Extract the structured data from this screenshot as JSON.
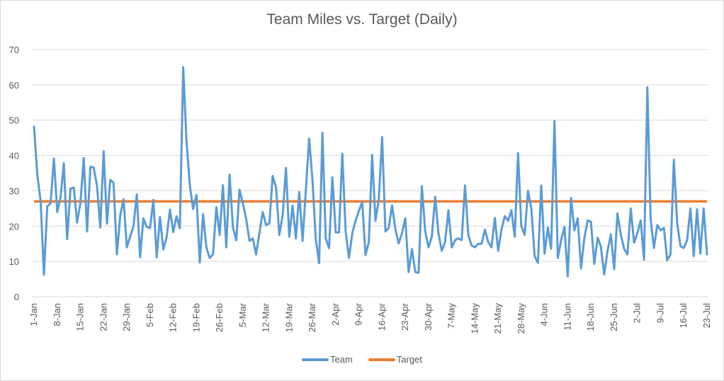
{
  "chart_data": {
    "type": "line",
    "title": "Team Miles vs. Target (Daily)",
    "xlabel": "",
    "ylabel": "",
    "ylim": [
      0,
      70
    ],
    "yticks": [
      "0",
      "10",
      "20",
      "30",
      "40",
      "50",
      "60",
      "70"
    ],
    "grid": true,
    "legend_position": "bottom",
    "x_start": "1-Jan",
    "x_end": "23-Jul",
    "xticks": [
      "1-Jan",
      "8-Jan",
      "15-Jan",
      "22-Jan",
      "29-Jan",
      "5-Feb",
      "12-Feb",
      "19-Feb",
      "26-Feb",
      "5-Mar",
      "12-Mar",
      "19-Mar",
      "26-Mar",
      "2-Apr",
      "9-Apr",
      "16-Apr",
      "23-Apr",
      "30-Apr",
      "7-May",
      "14-May",
      "21-May",
      "28-May",
      "4-Jun",
      "11-Jun",
      "18-Jun",
      "25-Jun",
      "2-Jul",
      "9-Jul",
      "16-Jul",
      "23-Jul"
    ],
    "series": [
      {
        "name": "Team",
        "color": "#5b9bd5",
        "values": [
          48.2,
          34.5,
          27.0,
          6.2,
          25.6,
          26.5,
          39.2,
          24.0,
          28.0,
          37.8,
          16.3,
          30.6,
          30.9,
          21.0,
          26.5,
          39.3,
          18.5,
          36.8,
          36.6,
          31.5,
          19.6,
          41.2,
          20.7,
          33.1,
          32.3,
          12.0,
          23.0,
          27.6,
          14.0,
          17.0,
          20.0,
          29.0,
          11.2,
          22.2,
          19.8,
          19.4,
          27.4,
          11.2,
          22.6,
          13.4,
          16.8,
          24.7,
          18.3,
          22.8,
          19.4,
          65.0,
          44.0,
          31.5,
          24.8,
          28.8,
          9.7,
          23.4,
          14.0,
          11.0,
          12.0,
          25.4,
          17.5,
          31.6,
          14.0,
          34.6,
          19.6,
          16.0,
          30.3,
          26.5,
          22.0,
          15.8,
          16.5,
          12.0,
          18.0,
          24.0,
          20.3,
          20.8,
          34.2,
          31.0,
          17.5,
          23.0,
          36.5,
          17.0,
          25.8,
          16.5,
          29.6,
          15.8,
          30.0,
          44.8,
          33.0,
          16.2,
          9.5,
          46.5,
          16.5,
          13.8,
          33.8,
          18.2,
          18.2,
          40.5,
          18.5,
          11.0,
          18.0,
          21.5,
          24.3,
          26.8,
          11.8,
          15.6,
          40.2,
          21.5,
          27.5,
          45.2,
          18.5,
          19.5,
          25.9,
          19.2,
          15.1,
          18.0,
          22.2,
          7.0,
          13.5,
          7.0,
          6.8,
          31.3,
          18.6,
          14.0,
          17.0,
          28.3,
          18.0,
          13.0,
          15.5,
          24.5,
          14.0,
          16.0,
          16.5,
          16.0,
          31.5,
          17.5,
          14.5,
          14.0,
          15.0,
          15.0,
          19.0,
          15.5,
          14.0,
          22.3,
          13.0,
          19.0,
          22.8,
          21.5,
          24.5,
          17.0,
          40.7,
          20.0,
          17.5,
          30.0,
          25.0,
          11.5,
          9.6,
          31.5,
          12.2,
          19.6,
          13.6,
          49.8,
          11.0,
          16.0,
          19.8,
          5.8,
          28.0,
          18.8,
          22.2,
          8.0,
          16.5,
          21.6,
          21.2,
          9.3,
          16.7,
          14.2,
          6.3,
          13.0,
          17.7,
          7.8,
          23.6,
          17.6,
          13.6,
          12.0,
          25.0,
          15.3,
          18.0,
          21.6,
          10.5,
          59.3,
          22.0,
          13.8,
          20.3,
          18.8,
          19.5,
          10.3,
          12.0,
          38.8,
          20.8,
          14.3,
          13.8,
          16.0,
          25.0,
          11.5,
          24.8,
          12.2,
          25.0,
          12.0
        ]
      },
      {
        "name": "Target",
        "color": "#ed7d31",
        "value": 27
      }
    ]
  }
}
